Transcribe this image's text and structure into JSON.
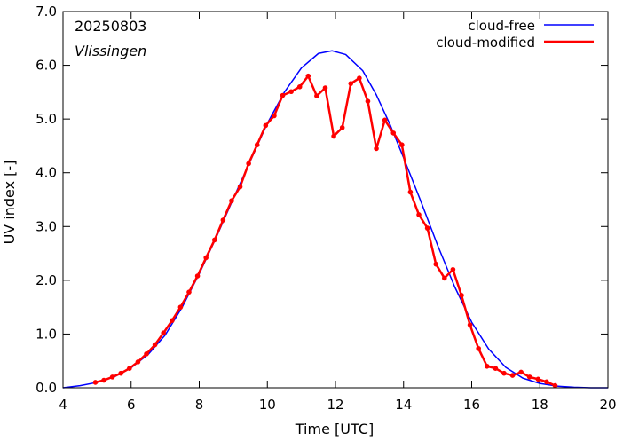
{
  "chart_data": {
    "type": "line",
    "title": "",
    "xlabel": "Time  [UTC]",
    "ylabel": "UV index  [-]",
    "xlim": [
      4,
      20
    ],
    "ylim": [
      0,
      7
    ],
    "x_ticks": [
      4,
      6,
      8,
      10,
      12,
      14,
      16,
      18,
      20
    ],
    "x_tick_labels": [
      "4",
      "6",
      "8",
      "10",
      "12",
      "14",
      "16",
      "18",
      "20"
    ],
    "y_ticks": [
      0,
      1,
      2,
      3,
      4,
      5,
      6,
      7
    ],
    "y_tick_labels": [
      "0.0",
      "1.0",
      "2.0",
      "3.0",
      "4.0",
      "5.0",
      "6.0",
      "7.0"
    ],
    "grid": false,
    "legend_position": "top-right",
    "annotations": {
      "date": "20250803",
      "station": "Vlissingen"
    },
    "series": [
      {
        "name": "cloud-free",
        "color": "#0000ff",
        "style": "line",
        "x": [
          4.0,
          4.5,
          5.0,
          5.5,
          6.0,
          6.5,
          7.0,
          7.5,
          8.0,
          8.5,
          9.0,
          9.5,
          10.0,
          10.5,
          11.0,
          11.5,
          11.9,
          12.3,
          12.8,
          13.2,
          13.6,
          14.0,
          14.5,
          15.0,
          15.5,
          16.0,
          16.5,
          17.0,
          17.5,
          18.0,
          18.5,
          19.0,
          19.5,
          20.0
        ],
        "y": [
          0.0,
          0.04,
          0.1,
          0.2,
          0.37,
          0.62,
          0.98,
          1.5,
          2.12,
          2.8,
          3.52,
          4.22,
          4.92,
          5.5,
          5.95,
          6.22,
          6.27,
          6.2,
          5.9,
          5.45,
          4.9,
          4.28,
          3.48,
          2.65,
          1.88,
          1.22,
          0.72,
          0.38,
          0.18,
          0.08,
          0.03,
          0.01,
          0.0,
          0.0
        ]
      },
      {
        "name": "cloud-modified",
        "color": "#ff0000",
        "style": "linepoints",
        "x": [
          4.95,
          5.2,
          5.45,
          5.7,
          5.95,
          6.2,
          6.45,
          6.7,
          6.95,
          7.2,
          7.45,
          7.7,
          7.95,
          8.2,
          8.45,
          8.7,
          8.95,
          9.2,
          9.45,
          9.7,
          9.95,
          10.2,
          10.45,
          10.7,
          10.95,
          11.2,
          11.45,
          11.7,
          11.95,
          12.2,
          12.45,
          12.7,
          12.95,
          13.2,
          13.45,
          13.7,
          13.95,
          14.2,
          14.45,
          14.7,
          14.95,
          15.2,
          15.45,
          15.7,
          15.95,
          16.2,
          16.45,
          16.7,
          16.95,
          17.2,
          17.45,
          17.7,
          17.95,
          18.2,
          18.45
        ],
        "y": [
          0.1,
          0.14,
          0.2,
          0.27,
          0.36,
          0.48,
          0.63,
          0.8,
          1.02,
          1.25,
          1.5,
          1.78,
          2.08,
          2.42,
          2.75,
          3.12,
          3.48,
          3.74,
          4.17,
          4.52,
          4.88,
          5.06,
          5.44,
          5.51,
          5.6,
          5.8,
          5.43,
          5.58,
          4.68,
          4.84,
          5.66,
          5.76,
          5.33,
          4.45,
          4.98,
          4.74,
          4.52,
          3.64,
          3.22,
          2.97,
          2.3,
          2.04,
          2.2,
          1.72,
          1.17,
          0.73,
          0.4,
          0.36,
          0.27,
          0.23,
          0.29,
          0.2,
          0.16,
          0.11,
          0.04
        ]
      }
    ]
  }
}
